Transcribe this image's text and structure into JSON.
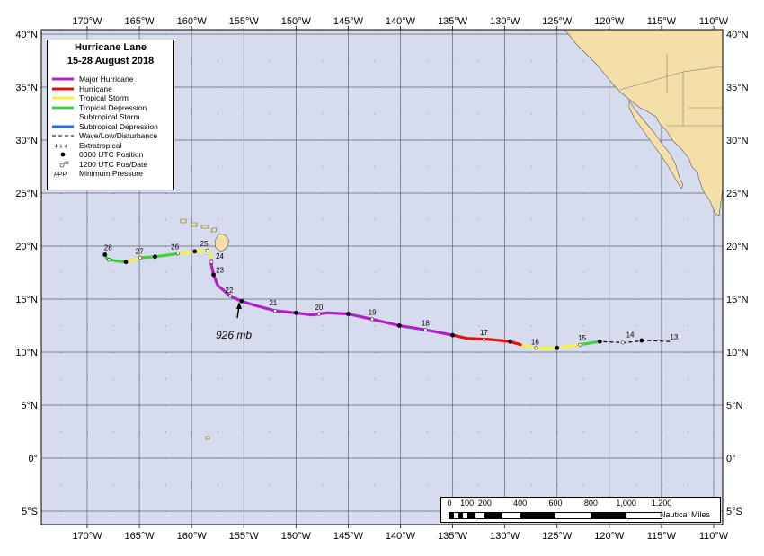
{
  "title": {
    "line1": "Hurricane Lane",
    "line2": "15-28 August 2018"
  },
  "colors": {
    "ocean": "#d6dced",
    "land": "#f5dfa9",
    "grid": "#5a6475",
    "major": "#b21fcc",
    "hurricane": "#e01010",
    "ts": "#f2f24a",
    "td": "#40d040",
    "ss": "#0a0a0a",
    "sd": "#2070e0",
    "wave": "#000000"
  },
  "legend": [
    {
      "label": "Major Hurricane",
      "symbol": "major"
    },
    {
      "label": "Hurricane",
      "symbol": "hurricane"
    },
    {
      "label": "Tropical Storm",
      "symbol": "ts"
    },
    {
      "label": "Tropical Depression",
      "symbol": "td"
    },
    {
      "label": "Subtropical Storm",
      "symbol": "ss"
    },
    {
      "label": "Subtropical Depression",
      "symbol": "sd"
    },
    {
      "label": "Wave/Low/Disturbance",
      "symbol": "wave"
    },
    {
      "label": "Extratropical",
      "symbol": "extratropical-plus-icon"
    },
    {
      "label": "0000 UTC Position",
      "symbol": "dot-icon"
    },
    {
      "label": "1200 UTC Pos/Date",
      "symbol": "open-circle-icon"
    },
    {
      "label": "Minimum Pressure",
      "symbol": "ppp-icon"
    }
  ],
  "legend_ppp": "PPP",
  "legend_dd": "dd",
  "lon_labels": [
    "170°W",
    "165°W",
    "160°W",
    "155°W",
    "150°W",
    "145°W",
    "140°W",
    "135°W",
    "130°W",
    "125°W",
    "120°W",
    "115°W",
    "110°W"
  ],
  "lon_values": [
    -170,
    -165,
    -160,
    -155,
    -150,
    -145,
    -140,
    -135,
    -130,
    -125,
    -120,
    -115,
    -110
  ],
  "lat_labels": [
    "40°N",
    "35°N",
    "30°N",
    "25°N",
    "20°N",
    "15°N",
    "10°N",
    "5°N",
    "0°",
    "5°S"
  ],
  "lat_values": [
    40,
    35,
    30,
    25,
    20,
    15,
    10,
    5,
    0,
    -5
  ],
  "min_pressure": "926 mb",
  "track": {
    "segments": [
      {
        "type": "wave",
        "points": [
          [
            -114.2,
            11.0
          ],
          [
            -116.5,
            11.1
          ],
          [
            -118.5,
            10.9
          ],
          [
            -120.9,
            11.0
          ]
        ]
      },
      {
        "type": "td",
        "points": [
          [
            -120.9,
            11.0
          ],
          [
            -122.8,
            10.7
          ]
        ]
      },
      {
        "type": "ts",
        "points": [
          [
            -122.8,
            10.7
          ],
          [
            -125.0,
            10.4
          ],
          [
            -127.0,
            10.4
          ],
          [
            -128.5,
            10.7
          ]
        ]
      },
      {
        "type": "hurricane",
        "points": [
          [
            -128.5,
            10.7
          ],
          [
            -129.5,
            11.0
          ],
          [
            -131.5,
            11.2
          ],
          [
            -133.6,
            11.3
          ],
          [
            -135.0,
            11.6
          ]
        ]
      },
      {
        "type": "major",
        "points": [
          [
            -135.0,
            11.6
          ],
          [
            -137.6,
            12.1
          ],
          [
            -140.1,
            12.5
          ],
          [
            -142.7,
            13.1
          ],
          [
            -145.0,
            13.6
          ],
          [
            -147.0,
            13.7
          ],
          [
            -148.5,
            13.5
          ],
          [
            -150.0,
            13.7
          ],
          [
            -152.0,
            13.9
          ],
          [
            -153.9,
            14.4
          ],
          [
            -155.2,
            14.8
          ],
          [
            -156.3,
            15.3
          ],
          [
            -157.5,
            16.3
          ],
          [
            -157.9,
            17.3
          ],
          [
            -158.1,
            18.2
          ],
          [
            -158.1,
            18.9
          ]
        ]
      },
      {
        "type": "ts",
        "points": [
          [
            -158.1,
            18.9
          ],
          [
            -158.4,
            19.6
          ],
          [
            -159.7,
            19.5
          ],
          [
            -161.3,
            19.3
          ]
        ]
      },
      {
        "type": "td",
        "points": [
          [
            -161.3,
            19.3
          ],
          [
            -163.5,
            19.0
          ],
          [
            -164.9,
            18.9
          ]
        ]
      },
      {
        "type": "ts",
        "points": [
          [
            -164.9,
            18.9
          ],
          [
            -166.3,
            18.5
          ]
        ]
      },
      {
        "type": "td",
        "points": [
          [
            -166.3,
            18.5
          ],
          [
            -167.3,
            18.6
          ],
          [
            -168.1,
            18.8
          ],
          [
            -168.3,
            19.2
          ]
        ]
      }
    ],
    "dots": [
      [
        -116.9,
        11.1
      ],
      [
        -120.9,
        11.0
      ],
      [
        -125.0,
        10.4
      ],
      [
        -129.5,
        11.0
      ],
      [
        -135.0,
        11.6
      ],
      [
        -140.1,
        12.5
      ],
      [
        -145.0,
        13.6
      ],
      [
        -150.0,
        13.7
      ],
      [
        -155.2,
        14.8
      ],
      [
        -157.9,
        17.3
      ],
      [
        -159.7,
        19.5
      ],
      [
        -163.5,
        19.0
      ],
      [
        -166.3,
        18.5
      ],
      [
        -168.3,
        19.2
      ]
    ],
    "circles": [
      [
        -118.7,
        10.9
      ],
      [
        -122.8,
        10.7
      ],
      [
        -127.0,
        10.4
      ],
      [
        -132.0,
        11.2
      ],
      [
        -137.6,
        12.1
      ],
      [
        -142.7,
        13.1
      ],
      [
        -147.8,
        13.6
      ],
      [
        -152.0,
        13.9
      ],
      [
        -156.3,
        15.3
      ],
      [
        -158.1,
        18.5
      ],
      [
        -158.5,
        19.6
      ],
      [
        -161.3,
        19.3
      ],
      [
        -164.9,
        18.9
      ],
      [
        -167.9,
        18.7
      ]
    ]
  },
  "date_labels": [
    {
      "text": "13",
      "lon": -113.8,
      "lat": 11.2
    },
    {
      "text": "14",
      "lon": -118.0,
      "lat": 11.4
    },
    {
      "text": "15",
      "lon": -122.6,
      "lat": 11.1
    },
    {
      "text": "16",
      "lon": -127.1,
      "lat": 10.7
    },
    {
      "text": "17",
      "lon": -132.0,
      "lat": 11.6
    },
    {
      "text": "18",
      "lon": -137.6,
      "lat": 12.5
    },
    {
      "text": "19",
      "lon": -142.7,
      "lat": 13.5
    },
    {
      "text": "20",
      "lon": -147.8,
      "lat": 14.0
    },
    {
      "text": "21",
      "lon": -152.2,
      "lat": 14.4
    },
    {
      "text": "22",
      "lon": -156.4,
      "lat": 15.6
    },
    {
      "text": "23",
      "lon": -157.3,
      "lat": 17.5
    },
    {
      "text": "24",
      "lon": -157.3,
      "lat": 18.8
    },
    {
      "text": "25",
      "lon": -158.8,
      "lat": 20.0
    },
    {
      "text": "26",
      "lon": -161.6,
      "lat": 19.7
    },
    {
      "text": "27",
      "lon": -165.0,
      "lat": 19.3
    },
    {
      "text": "28",
      "lon": -168.0,
      "lat": 19.6
    }
  ],
  "scale": {
    "labels": [
      "0",
      "100",
      "200",
      "400",
      "600",
      "800",
      "1,000",
      "1,200"
    ],
    "nm": [
      0,
      100,
      200,
      400,
      600,
      800,
      1000,
      1200
    ],
    "unit": "Nautical Miles"
  }
}
